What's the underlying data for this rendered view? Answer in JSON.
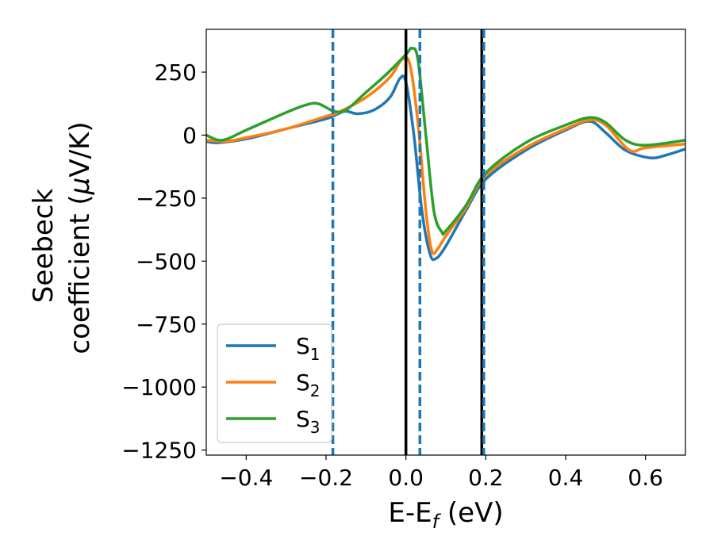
{
  "chart_data": {
    "type": "line",
    "xlabel": "E-E",
    "xlabel_sub": "f",
    "xlabel_unit": " (eV)",
    "ylabel_line1": "Seebeck",
    "ylabel_line2": "coefficient  (",
    "ylabel_mu": "μ",
    "ylabel_unit": "V/K)",
    "xlim": [
      -0.5,
      0.7
    ],
    "ylim": [
      -1270,
      420
    ],
    "x_ticks": [
      -0.4,
      -0.2,
      0.0,
      0.2,
      0.4,
      0.6
    ],
    "x_tick_labels": [
      "−0.4",
      "−0.2",
      "0.0",
      "0.2",
      "0.4",
      "0.6"
    ],
    "y_ticks": [
      250,
      0,
      -250,
      -500,
      -750,
      -1000,
      -1250
    ],
    "y_tick_labels": [
      "250",
      "0",
      "−250",
      "−500",
      "−750",
      "−1000",
      "−1250"
    ],
    "grid": false,
    "legend_position": "lower-left",
    "series": [
      {
        "name": "S",
        "sub": "1",
        "color": "#1f77b4",
        "points": [
          [
            -0.5,
            -25
          ],
          [
            -0.47,
            -30
          ],
          [
            -0.4,
            -15
          ],
          [
            -0.3,
            25
          ],
          [
            -0.2,
            65
          ],
          [
            -0.17,
            85
          ],
          [
            -0.15,
            95
          ],
          [
            -0.12,
            85
          ],
          [
            -0.08,
            100
          ],
          [
            -0.04,
            150
          ],
          [
            -0.015,
            225
          ],
          [
            0.0,
            210
          ],
          [
            0.02,
            0
          ],
          [
            0.04,
            -300
          ],
          [
            0.06,
            -470
          ],
          [
            0.075,
            -490
          ],
          [
            0.1,
            -440
          ],
          [
            0.15,
            -300
          ],
          [
            0.2,
            -175
          ],
          [
            0.3,
            -60
          ],
          [
            0.4,
            20
          ],
          [
            0.46,
            55
          ],
          [
            0.5,
            10
          ],
          [
            0.55,
            -60
          ],
          [
            0.61,
            -90
          ],
          [
            0.65,
            -80
          ],
          [
            0.7,
            -55
          ]
        ]
      },
      {
        "name": "S",
        "sub": "2",
        "color": "#ff7f0e",
        "points": [
          [
            -0.5,
            -20
          ],
          [
            -0.45,
            -25
          ],
          [
            -0.4,
            -10
          ],
          [
            -0.3,
            25
          ],
          [
            -0.2,
            75
          ],
          [
            -0.17,
            90
          ],
          [
            -0.1,
            150
          ],
          [
            -0.04,
            230
          ],
          [
            -0.01,
            300
          ],
          [
            0.01,
            280
          ],
          [
            0.03,
            50
          ],
          [
            0.05,
            -300
          ],
          [
            0.065,
            -460
          ],
          [
            0.08,
            -450
          ],
          [
            0.1,
            -400
          ],
          [
            0.15,
            -290
          ],
          [
            0.2,
            -160
          ],
          [
            0.3,
            -50
          ],
          [
            0.4,
            25
          ],
          [
            0.46,
            60
          ],
          [
            0.5,
            40
          ],
          [
            0.56,
            -60
          ],
          [
            0.6,
            -50
          ],
          [
            0.7,
            -35
          ]
        ]
      },
      {
        "name": "S",
        "sub": "3",
        "color": "#2ca02c",
        "points": [
          [
            -0.5,
            0
          ],
          [
            -0.46,
            -20
          ],
          [
            -0.4,
            20
          ],
          [
            -0.3,
            90
          ],
          [
            -0.25,
            120
          ],
          [
            -0.22,
            125
          ],
          [
            -0.18,
            95
          ],
          [
            -0.15,
            100
          ],
          [
            -0.1,
            170
          ],
          [
            -0.05,
            240
          ],
          [
            0.0,
            320
          ],
          [
            0.015,
            345
          ],
          [
            0.03,
            300
          ],
          [
            0.05,
            0
          ],
          [
            0.07,
            -300
          ],
          [
            0.09,
            -385
          ],
          [
            0.1,
            -380
          ],
          [
            0.15,
            -280
          ],
          [
            0.2,
            -150
          ],
          [
            0.3,
            -30
          ],
          [
            0.4,
            40
          ],
          [
            0.46,
            70
          ],
          [
            0.5,
            50
          ],
          [
            0.55,
            -20
          ],
          [
            0.6,
            -40
          ],
          [
            0.7,
            -20
          ]
        ]
      }
    ],
    "vlines": [
      {
        "x": 0.0,
        "color": "#000000",
        "style": "solid"
      },
      {
        "x": 0.19,
        "color": "#000000",
        "style": "solid"
      },
      {
        "x": -0.183,
        "color": "#1f77b4",
        "style": "dashed"
      },
      {
        "x": 0.035,
        "color": "#1f77b4",
        "style": "dashed"
      },
      {
        "x": 0.195,
        "color": "#1f77b4",
        "style": "dashed"
      }
    ]
  }
}
